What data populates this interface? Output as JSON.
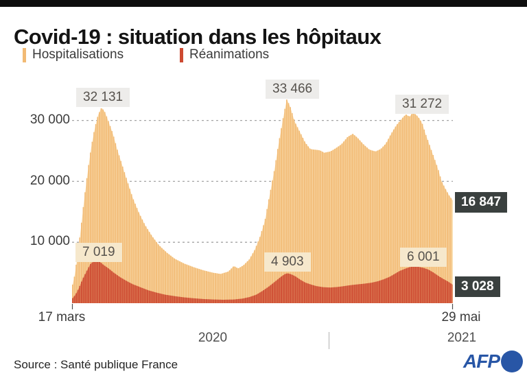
{
  "header": {
    "title": "Covid-19 : situation dans les hôpitaux"
  },
  "legend": {
    "items": [
      {
        "label": "Hospitalisations",
        "color": "#f2ba74"
      },
      {
        "label": "Réanimations",
        "color": "#cd4a31"
      }
    ]
  },
  "footer": {
    "source": "Source : Santé publique France",
    "agency": "AFP"
  },
  "chart_data": {
    "type": "area",
    "title": "Covid-19 : situation dans les hôpitaux",
    "grid": "dashed-horizontal",
    "x_axis": {
      "start_label": "17 mars",
      "end_label": "29 mai",
      "year_left": "2020",
      "year_right": "2021",
      "start_day": 0,
      "end_day": 438
    },
    "y_axis": {
      "range": [
        0,
        35000
      ],
      "ticks": [
        {
          "value": 30000,
          "label": "30 000"
        },
        {
          "value": 20000,
          "label": "20 000"
        },
        {
          "value": 10000,
          "label": "10 000"
        }
      ]
    },
    "series": [
      {
        "name": "Hospitalisations",
        "bar_color": "#f2ba74",
        "gap_color": "#f9ddb0",
        "points": [
          [
            0,
            2600
          ],
          [
            3,
            4500
          ],
          [
            6,
            7500
          ],
          [
            10,
            12000
          ],
          [
            14,
            17000
          ],
          [
            18,
            21500
          ],
          [
            22,
            25500
          ],
          [
            26,
            28600
          ],
          [
            30,
            30900
          ],
          [
            34,
            32131
          ],
          [
            38,
            31300
          ],
          [
            42,
            29800
          ],
          [
            47,
            27800
          ],
          [
            52,
            25200
          ],
          [
            58,
            22500
          ],
          [
            64,
            19800
          ],
          [
            70,
            17200
          ],
          [
            77,
            14800
          ],
          [
            84,
            12800
          ],
          [
            92,
            11000
          ],
          [
            100,
            9500
          ],
          [
            109,
            8300
          ],
          [
            118,
            7300
          ],
          [
            129,
            6500
          ],
          [
            140,
            5900
          ],
          [
            151,
            5400
          ],
          [
            162,
            5000
          ],
          [
            171,
            4800
          ],
          [
            180,
            5200
          ],
          [
            186,
            6100
          ],
          [
            191,
            5700
          ],
          [
            197,
            6200
          ],
          [
            204,
            7200
          ],
          [
            210,
            8700
          ],
          [
            216,
            10800
          ],
          [
            222,
            13600
          ],
          [
            227,
            17500
          ],
          [
            233,
            22000
          ],
          [
            238,
            26500
          ],
          [
            243,
            30500
          ],
          [
            247,
            33466
          ],
          [
            251,
            32200
          ],
          [
            256,
            29800
          ],
          [
            261,
            28400
          ],
          [
            268,
            26400
          ],
          [
            274,
            25300
          ],
          [
            279,
            25200
          ],
          [
            285,
            25100
          ],
          [
            290,
            24700
          ],
          [
            297,
            24900
          ],
          [
            303,
            25400
          ],
          [
            310,
            26100
          ],
          [
            317,
            27300
          ],
          [
            323,
            27800
          ],
          [
            328,
            27200
          ],
          [
            335,
            26100
          ],
          [
            342,
            25200
          ],
          [
            349,
            24900
          ],
          [
            355,
            25300
          ],
          [
            361,
            26200
          ],
          [
            367,
            27800
          ],
          [
            373,
            29200
          ],
          [
            380,
            30400
          ],
          [
            384,
            31000
          ],
          [
            388,
            30600
          ],
          [
            392,
            31272
          ],
          [
            396,
            30900
          ],
          [
            400,
            30200
          ],
          [
            403,
            29400
          ],
          [
            406,
            28000
          ],
          [
            411,
            26000
          ],
          [
            416,
            24000
          ],
          [
            421,
            22000
          ],
          [
            425,
            20000
          ],
          [
            430,
            18600
          ],
          [
            434,
            17600
          ],
          [
            438,
            16847
          ]
        ],
        "peak_labels": [
          {
            "label": "32 131",
            "day": 34,
            "value": 32131
          },
          {
            "label": "33 466",
            "day": 247,
            "value": 33466
          },
          {
            "label": "31 272",
            "day": 392,
            "value": 31272
          }
        ],
        "end_value": 16847
      },
      {
        "name": "Réanimations",
        "bar_color": "#cd4a31",
        "gap_color": "#e0885f",
        "points": [
          [
            0,
            700
          ],
          [
            4,
            1400
          ],
          [
            8,
            2500
          ],
          [
            12,
            3900
          ],
          [
            17,
            5300
          ],
          [
            21,
            6400
          ],
          [
            25,
            6900
          ],
          [
            28,
            7019
          ],
          [
            32,
            6800
          ],
          [
            36,
            6300
          ],
          [
            42,
            5700
          ],
          [
            48,
            5000
          ],
          [
            55,
            4300
          ],
          [
            62,
            3700
          ],
          [
            70,
            3100
          ],
          [
            79,
            2600
          ],
          [
            88,
            2100
          ],
          [
            98,
            1700
          ],
          [
            107,
            1400
          ],
          [
            118,
            1150
          ],
          [
            129,
            950
          ],
          [
            140,
            800
          ],
          [
            151,
            680
          ],
          [
            163,
            600
          ],
          [
            174,
            560
          ],
          [
            186,
            600
          ],
          [
            196,
            750
          ],
          [
            204,
            1000
          ],
          [
            212,
            1400
          ],
          [
            219,
            2000
          ],
          [
            227,
            2800
          ],
          [
            234,
            3600
          ],
          [
            240,
            4300
          ],
          [
            245,
            4800
          ],
          [
            248,
            4903
          ],
          [
            252,
            4750
          ],
          [
            257,
            4400
          ],
          [
            262,
            3900
          ],
          [
            268,
            3400
          ],
          [
            275,
            3050
          ],
          [
            281,
            2800
          ],
          [
            289,
            2620
          ],
          [
            297,
            2570
          ],
          [
            305,
            2650
          ],
          [
            313,
            2800
          ],
          [
            320,
            2950
          ],
          [
            328,
            3080
          ],
          [
            336,
            3200
          ],
          [
            344,
            3350
          ],
          [
            352,
            3600
          ],
          [
            358,
            3900
          ],
          [
            365,
            4300
          ],
          [
            371,
            4800
          ],
          [
            377,
            5300
          ],
          [
            384,
            5700
          ],
          [
            389,
            5950
          ],
          [
            394,
            6001
          ],
          [
            399,
            5950
          ],
          [
            404,
            5800
          ],
          [
            410,
            5500
          ],
          [
            416,
            5000
          ],
          [
            422,
            4400
          ],
          [
            428,
            3900
          ],
          [
            433,
            3500
          ],
          [
            436,
            3200
          ],
          [
            438,
            3028
          ]
        ],
        "peak_labels": [
          {
            "label": "7 019",
            "day": 28,
            "value": 7019
          },
          {
            "label": "4 903",
            "day": 248,
            "value": 4903
          },
          {
            "label": "6 001",
            "day": 394,
            "value": 6001
          }
        ],
        "end_value": 3028
      }
    ],
    "annotations": [
      {
        "label": "32 131"
      },
      {
        "label": "33 466"
      },
      {
        "label": "31 272"
      },
      {
        "label": "7 019"
      },
      {
        "label": "4 903"
      },
      {
        "label": "6 001"
      }
    ],
    "end_badges": [
      {
        "label": "16 847",
        "series": "Hospitalisations"
      },
      {
        "label": "3 028",
        "series": "Réanimations"
      }
    ],
    "colors": {
      "badge_bg": "#3a403f",
      "gridline": "#a3a3a3",
      "afp_blue": "#2856a6"
    }
  }
}
